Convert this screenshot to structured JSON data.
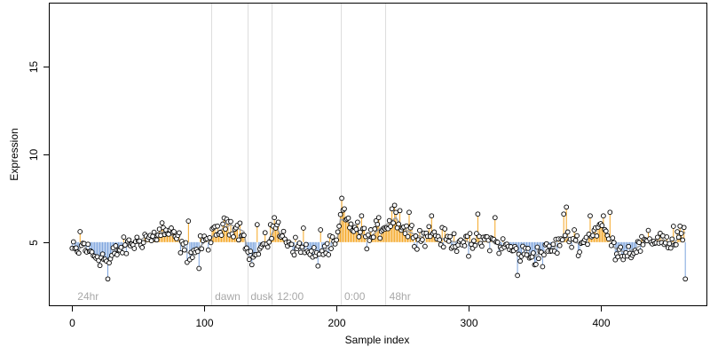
{
  "chart_data": {
    "type": "scatter",
    "xlabel": "Sample index",
    "ylabel": "Expression",
    "xlim": [
      -17,
      480
    ],
    "ylim": [
      1.4,
      18.6
    ],
    "xticks": [
      0,
      100,
      200,
      300,
      400
    ],
    "yticks": [
      5,
      10,
      15
    ],
    "baseline": 5.0,
    "colors": {
      "above": "#f5a623",
      "below": "#7ba3dd",
      "trend": "#a0a0a0",
      "point_fill": "#ffffff",
      "point_stroke": "#000000",
      "separator": "#dddddd",
      "group_label": "#a8a8a8"
    },
    "separators": [
      105,
      133,
      151,
      203,
      237
    ],
    "groups": [
      {
        "label": "24hr",
        "x": 2
      },
      {
        "label": "dawn",
        "x": 106
      },
      {
        "label": "dusk",
        "x": 133
      },
      {
        "label": "12:00",
        "x": 153
      },
      {
        "label": "0:00",
        "x": 204
      },
      {
        "label": "48hr",
        "x": 238
      }
    ],
    "anchors": [
      [
        0,
        4.6
      ],
      [
        4,
        4.4
      ],
      [
        8,
        4.9
      ],
      [
        12,
        4.5
      ],
      [
        16,
        4.3
      ],
      [
        20,
        4.2
      ],
      [
        24,
        4.1
      ],
      [
        28,
        3.8
      ],
      [
        32,
        4.4
      ],
      [
        36,
        4.6
      ],
      [
        40,
        4.7
      ],
      [
        45,
        4.9
      ],
      [
        50,
        5.0
      ],
      [
        55,
        5.3
      ],
      [
        60,
        5.2
      ],
      [
        65,
        5.5
      ],
      [
        70,
        5.6
      ],
      [
        75,
        5.4
      ],
      [
        80,
        5.2
      ],
      [
        85,
        4.5
      ],
      [
        90,
        4.3
      ],
      [
        95,
        4.6
      ],
      [
        100,
        5.0
      ],
      [
        105,
        5.2
      ],
      [
        110,
        5.6
      ],
      [
        115,
        5.8
      ],
      [
        120,
        6.0
      ],
      [
        125,
        5.8
      ],
      [
        130,
        5.6
      ],
      [
        133,
        4.2
      ],
      [
        137,
        4.1
      ],
      [
        141,
        4.5
      ],
      [
        146,
        4.8
      ],
      [
        150,
        5.3
      ],
      [
        154,
        5.9
      ],
      [
        158,
        5.4
      ],
      [
        162,
        5.2
      ],
      [
        166,
        4.9
      ],
      [
        170,
        4.7
      ],
      [
        175,
        4.6
      ],
      [
        180,
        4.3
      ],
      [
        185,
        4.1
      ],
      [
        190,
        4.5
      ],
      [
        195,
        4.7
      ],
      [
        200,
        4.9
      ],
      [
        203,
        6.3
      ],
      [
        208,
        6.2
      ],
      [
        212,
        5.9
      ],
      [
        216,
        5.6
      ],
      [
        220,
        5.4
      ],
      [
        225,
        5.2
      ],
      [
        230,
        5.6
      ],
      [
        235,
        5.9
      ],
      [
        240,
        6.1
      ],
      [
        245,
        6.4
      ],
      [
        250,
        5.8
      ],
      [
        255,
        5.6
      ],
      [
        260,
        5.4
      ],
      [
        265,
        5.3
      ],
      [
        270,
        5.5
      ],
      [
        275,
        5.4
      ],
      [
        280,
        5.2
      ],
      [
        285,
        5.1
      ],
      [
        290,
        5.0
      ],
      [
        295,
        5.2
      ],
      [
        300,
        5.0
      ],
      [
        305,
        4.9
      ],
      [
        310,
        5.0
      ],
      [
        315,
        5.2
      ],
      [
        320,
        4.9
      ],
      [
        325,
        4.8
      ],
      [
        330,
        4.7
      ],
      [
        335,
        4.5
      ],
      [
        340,
        4.3
      ],
      [
        345,
        4.4
      ],
      [
        350,
        4.2
      ],
      [
        355,
        4.4
      ],
      [
        360,
        4.5
      ],
      [
        365,
        4.7
      ],
      [
        370,
        5.0
      ],
      [
        375,
        5.3
      ],
      [
        380,
        5.0
      ],
      [
        385,
        4.9
      ],
      [
        390,
        5.2
      ],
      [
        395,
        5.6
      ],
      [
        400,
        6.0
      ],
      [
        405,
        5.4
      ],
      [
        410,
        4.7
      ],
      [
        415,
        4.5
      ],
      [
        420,
        4.4
      ],
      [
        425,
        4.6
      ],
      [
        430,
        4.8
      ],
      [
        435,
        5.0
      ],
      [
        440,
        5.1
      ],
      [
        445,
        5.3
      ],
      [
        450,
        5.0
      ],
      [
        455,
        4.9
      ],
      [
        460,
        5.4
      ],
      [
        465,
        5.6
      ]
    ],
    "highlights": [
      [
        6,
        5.6
      ],
      [
        27,
        2.9
      ],
      [
        45,
        4.9
      ],
      [
        68,
        6.1
      ],
      [
        88,
        6.2
      ],
      [
        96,
        3.5
      ],
      [
        117,
        6.3
      ],
      [
        140,
        6.0
      ],
      [
        150,
        6.0
      ],
      [
        153,
        6.4
      ],
      [
        175,
        5.8
      ],
      [
        188,
        5.7
      ],
      [
        204,
        7.5
      ],
      [
        206,
        6.9
      ],
      [
        219,
        6.5
      ],
      [
        232,
        6.4
      ],
      [
        242,
        6.9
      ],
      [
        244,
        7.1
      ],
      [
        248,
        6.8
      ],
      [
        255,
        6.7
      ],
      [
        272,
        6.5
      ],
      [
        300,
        4.2
      ],
      [
        307,
        6.6
      ],
      [
        320,
        6.4
      ],
      [
        337,
        3.1
      ],
      [
        356,
        3.6
      ],
      [
        372,
        6.6
      ],
      [
        374,
        7.0
      ],
      [
        380,
        5.7
      ],
      [
        392,
        6.5
      ],
      [
        402,
        6.5
      ],
      [
        407,
        6.7
      ],
      [
        455,
        5.9
      ],
      [
        464,
        2.9
      ]
    ],
    "n_points": 465
  }
}
